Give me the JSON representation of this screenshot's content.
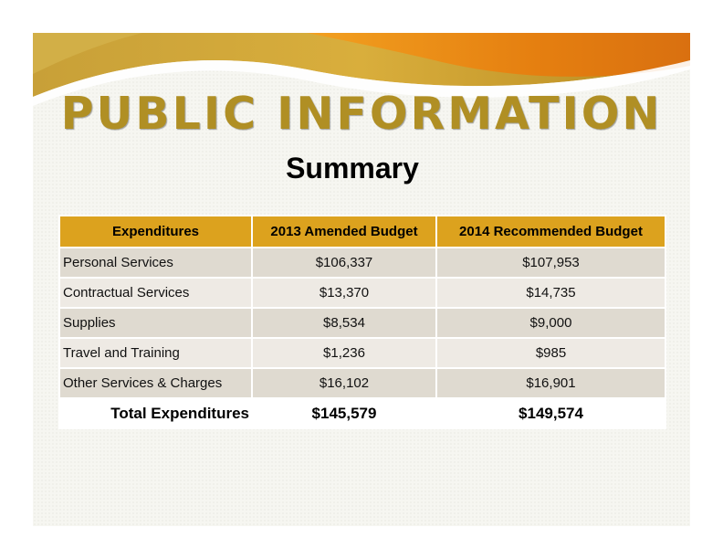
{
  "title": "PUBLIC INFORMATION",
  "subtitle": "Summary",
  "colors": {
    "title": "#b08f24",
    "header_fill": "#dca21e",
    "swoosh_orange": "#e88a14",
    "swoosh_gold": "#c9a233"
  },
  "table": {
    "headers": [
      "Expenditures",
      "2013 Amended Budget",
      "2014 Recommended Budget"
    ],
    "rows": [
      {
        "label": "Personal Services",
        "y2013": "$106,337",
        "y2014": "$107,953"
      },
      {
        "label": "Contractual Services",
        "y2013": "$13,370",
        "y2014": "$14,735"
      },
      {
        "label": "Supplies",
        "y2013": "$8,534",
        "y2014": "$9,000"
      },
      {
        "label": "Travel and Training",
        "y2013": "$1,236",
        "y2014": "$985"
      },
      {
        "label": "Other Services & Charges",
        "y2013": "$16,102",
        "y2014": "$16,901"
      }
    ],
    "total": {
      "label": "Total Expenditures",
      "y2013": "$145,579",
      "y2014": "$149,574"
    }
  }
}
